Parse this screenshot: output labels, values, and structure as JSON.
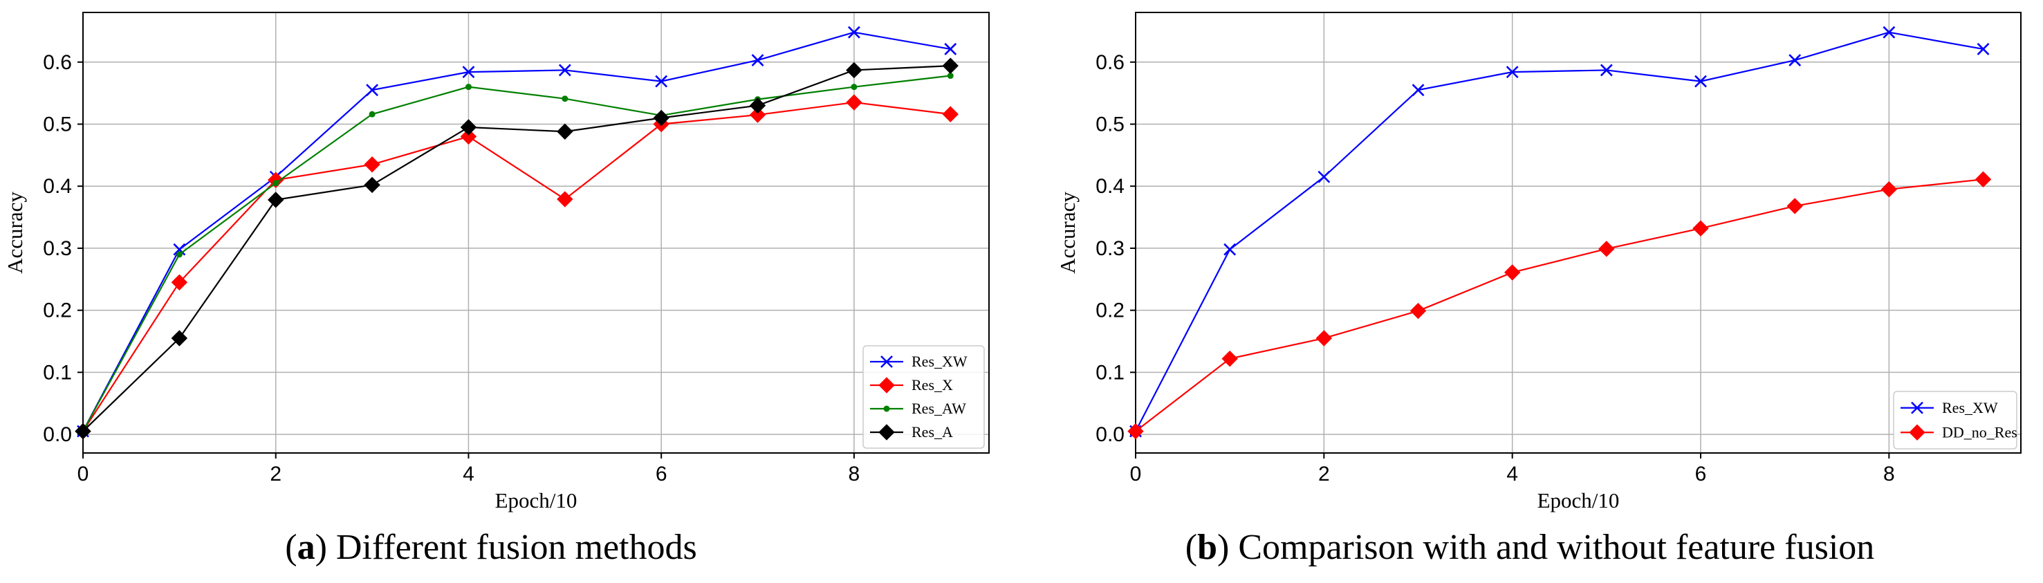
{
  "chart_data": [
    {
      "type": "line",
      "id": "a",
      "caption_letter": "a",
      "caption_text": " Different fusion methods",
      "xlabel": "Epoch/10",
      "ylabel": "Accuracy",
      "xlim": [
        0,
        9.4
      ],
      "ylim": [
        -0.03,
        0.68
      ],
      "xticks": [
        0,
        2,
        4,
        6,
        8
      ],
      "yticks": [
        0.0,
        0.1,
        0.2,
        0.3,
        0.4,
        0.5,
        0.6
      ],
      "ytick_labels": [
        "0.0",
        "0.1",
        "0.2",
        "0.3",
        "0.4",
        "0.5",
        "0.6"
      ],
      "grid": true,
      "legend_position": "bottom-right",
      "x": [
        0,
        1,
        2,
        3,
        4,
        5,
        6,
        7,
        8,
        9
      ],
      "series": [
        {
          "name": "Res_XW",
          "color": "#0000ff",
          "marker": "x",
          "values": [
            0.005,
            0.298,
            0.415,
            0.555,
            0.584,
            0.587,
            0.569,
            0.603,
            0.648,
            0.621
          ]
        },
        {
          "name": "Res_X",
          "color": "#ff0000",
          "marker": "diamond",
          "values": [
            0.005,
            0.245,
            0.41,
            0.435,
            0.48,
            0.379,
            0.5,
            0.515,
            0.535,
            0.516
          ]
        },
        {
          "name": "Res_AW",
          "color": "#008000",
          "marker": "dot",
          "values": [
            0.005,
            0.29,
            0.405,
            0.516,
            0.56,
            0.541,
            0.514,
            0.54,
            0.56,
            0.578
          ]
        },
        {
          "name": "Res_A",
          "color": "#000000",
          "marker": "diamond",
          "values": [
            0.005,
            0.155,
            0.378,
            0.402,
            0.495,
            0.488,
            0.51,
            0.53,
            0.587,
            0.594
          ]
        }
      ]
    },
    {
      "type": "line",
      "id": "b",
      "caption_letter": "b",
      "caption_text": " Comparison with and without feature fusion",
      "xlabel": "Epoch/10",
      "ylabel": "Accuracy",
      "xlim": [
        0,
        9.4
      ],
      "ylim": [
        -0.03,
        0.68
      ],
      "xticks": [
        0,
        2,
        4,
        6,
        8
      ],
      "yticks": [
        0.0,
        0.1,
        0.2,
        0.3,
        0.4,
        0.5,
        0.6
      ],
      "ytick_labels": [
        "0.0",
        "0.1",
        "0.2",
        "0.3",
        "0.4",
        "0.5",
        "0.6"
      ],
      "grid": true,
      "legend_position": "bottom-right",
      "x": [
        0,
        1,
        2,
        3,
        4,
        5,
        6,
        7,
        8,
        9
      ],
      "series": [
        {
          "name": "Res_XW",
          "color": "#0000ff",
          "marker": "x",
          "values": [
            0.005,
            0.298,
            0.415,
            0.555,
            0.584,
            0.587,
            0.569,
            0.603,
            0.648,
            0.621
          ]
        },
        {
          "name": "DD_no_Res",
          "color": "#ff0000",
          "marker": "diamond",
          "values": [
            0.005,
            0.122,
            0.155,
            0.199,
            0.261,
            0.299,
            0.332,
            0.368,
            0.395,
            0.411
          ]
        }
      ]
    }
  ]
}
